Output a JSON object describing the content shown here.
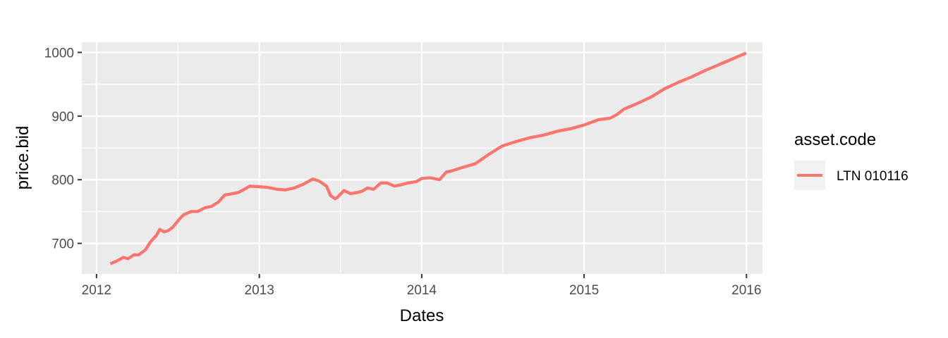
{
  "chart_data": {
    "type": "line",
    "xlabel": "Dates",
    "ylabel": "price.bid",
    "xlim": [
      "2011-11-29",
      "2016-02-06"
    ],
    "ylim": [
      652,
      1016
    ],
    "x_ticks": [
      {
        "value": "2012-01-01",
        "label": "2012"
      },
      {
        "value": "2013-01-01",
        "label": "2013"
      },
      {
        "value": "2014-01-01",
        "label": "2014"
      },
      {
        "value": "2015-01-01",
        "label": "2015"
      },
      {
        "value": "2016-01-01",
        "label": "2016"
      }
    ],
    "y_ticks": [
      {
        "value": 700,
        "label": "700"
      },
      {
        "value": 800,
        "label": "800"
      },
      {
        "value": 900,
        "label": "900"
      },
      {
        "value": 1000,
        "label": "1000"
      }
    ],
    "grid": true,
    "legend": {
      "title": "asset.code",
      "position": "right"
    },
    "colors": {
      "panel": "#ebebeb",
      "grid": "#ffffff",
      "series": "#f8766d"
    },
    "series": [
      {
        "name": "LTN 010116",
        "x": [
          "2012-02-01",
          "2012-02-15",
          "2012-03-01",
          "2012-03-12",
          "2012-03-25",
          "2012-04-05",
          "2012-04-20",
          "2012-05-01",
          "2012-05-15",
          "2012-05-22",
          "2012-06-01",
          "2012-06-10",
          "2012-06-20",
          "2012-07-05",
          "2012-07-15",
          "2012-08-01",
          "2012-08-15",
          "2012-09-01",
          "2012-09-15",
          "2012-10-01",
          "2012-10-15",
          "2012-11-01",
          "2012-11-15",
          "2012-12-01",
          "2012-12-10",
          "2013-01-01",
          "2013-01-20",
          "2013-02-10",
          "2013-03-01",
          "2013-03-20",
          "2013-04-10",
          "2013-05-01",
          "2013-05-15",
          "2013-06-01",
          "2013-06-10",
          "2013-06-20",
          "2013-06-25",
          "2013-07-10",
          "2013-07-25",
          "2013-08-10",
          "2013-08-20",
          "2013-09-01",
          "2013-09-15",
          "2013-10-01",
          "2013-10-15",
          "2013-11-01",
          "2013-11-15",
          "2013-12-01",
          "2013-12-20",
          "2014-01-01",
          "2014-01-20",
          "2014-02-10",
          "2014-02-25",
          "2014-03-10",
          "2014-04-01",
          "2014-05-01",
          "2014-06-01",
          "2014-07-01",
          "2014-08-01",
          "2014-09-01",
          "2014-10-01",
          "2014-11-01",
          "2014-12-01",
          "2015-01-01",
          "2015-02-01",
          "2015-03-01",
          "2015-03-15",
          "2015-04-01",
          "2015-05-01",
          "2015-06-01",
          "2015-07-01",
          "2015-08-01",
          "2015-09-01",
          "2015-10-01",
          "2015-11-01",
          "2015-12-01",
          "2015-12-31"
        ],
        "values": [
          668,
          672,
          678,
          676,
          682,
          682,
          690,
          702,
          713,
          722,
          718,
          720,
          725,
          738,
          745,
          750,
          750,
          756,
          758,
          765,
          776,
          778,
          780,
          786,
          790,
          789,
          788,
          785,
          784,
          787,
          793,
          801,
          798,
          790,
          775,
          770,
          772,
          783,
          778,
          780,
          782,
          787,
          785,
          795,
          795,
          790,
          792,
          795,
          797,
          802,
          803,
          800,
          812,
          814,
          819,
          825,
          840,
          853,
          860,
          866,
          870,
          876,
          880,
          886,
          894,
          897,
          902,
          911,
          920,
          930,
          943,
          953,
          962,
          972,
          981,
          990,
          999
        ]
      }
    ]
  }
}
